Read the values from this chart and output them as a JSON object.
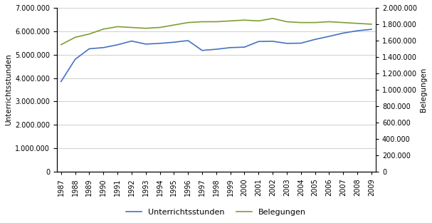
{
  "years": [
    1987,
    1988,
    1989,
    1990,
    1991,
    1992,
    1993,
    1994,
    1995,
    1996,
    1997,
    1998,
    1999,
    2000,
    2001,
    2002,
    2003,
    2004,
    2005,
    2006,
    2007,
    2008,
    2009
  ],
  "unterrichtsstunden": [
    3850000,
    4800000,
    5250000,
    5300000,
    5420000,
    5580000,
    5450000,
    5480000,
    5530000,
    5600000,
    5180000,
    5230000,
    5300000,
    5320000,
    5560000,
    5570000,
    5480000,
    5490000,
    5650000,
    5780000,
    5920000,
    6020000,
    6080000
  ],
  "belegungen": [
    1550000,
    1640000,
    1680000,
    1740000,
    1770000,
    1760000,
    1750000,
    1760000,
    1790000,
    1820000,
    1830000,
    1830000,
    1840000,
    1850000,
    1840000,
    1870000,
    1830000,
    1820000,
    1820000,
    1830000,
    1820000,
    1810000,
    1800000
  ],
  "left_ylim": [
    0,
    7000000
  ],
  "right_ylim": [
    0,
    2000000
  ],
  "left_yticks": [
    0,
    1000000,
    2000000,
    3000000,
    4000000,
    5000000,
    6000000,
    7000000
  ],
  "right_yticks": [
    0,
    200000,
    400000,
    600000,
    800000,
    1000000,
    1200000,
    1400000,
    1600000,
    1800000,
    2000000
  ],
  "left_ylabel": "Unterrichtsstunden",
  "right_ylabel": "Belegungen",
  "line1_color": "#4472C4",
  "line2_color": "#7F9E34",
  "line1_label": "Unterrichtsstunden",
  "line2_label": "Belegungen",
  "bg_color": "#FFFFFF",
  "grid_color": "#C8C8C8",
  "tick_fontsize": 7.0,
  "label_fontsize": 7.5,
  "legend_fontsize": 8.0
}
